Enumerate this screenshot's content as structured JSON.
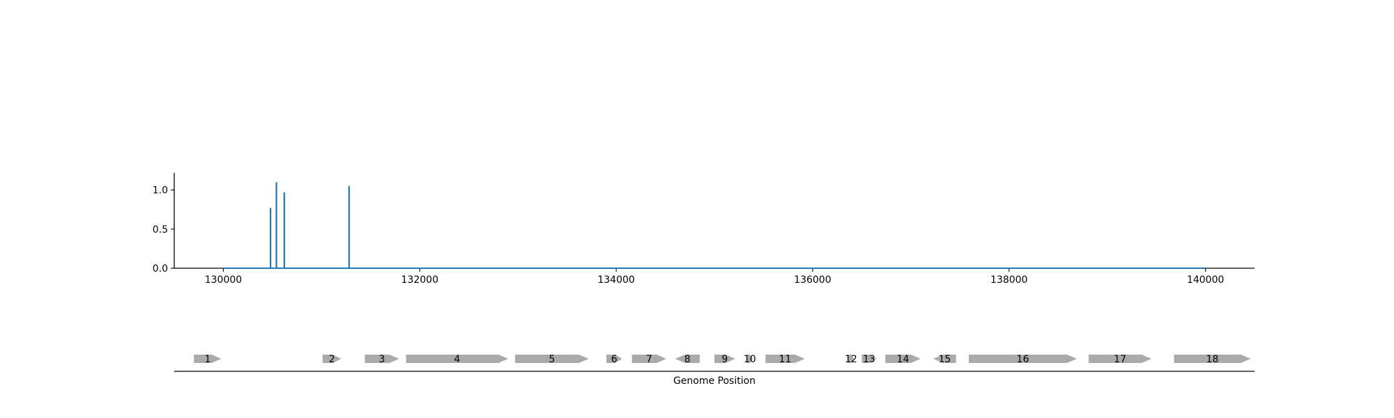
{
  "chart_data": [
    {
      "type": "line",
      "title": "",
      "xlabel": "",
      "ylabel": "",
      "xlim": [
        129500,
        140500
      ],
      "ylim": [
        0,
        1.22
      ],
      "x_ticks": [
        130000,
        132000,
        134000,
        136000,
        138000,
        140000
      ],
      "x_tick_labels": [
        "130000",
        "132000",
        "134000",
        "136000",
        "138000",
        "140000"
      ],
      "y_ticks": [
        0.0,
        0.5,
        1.0
      ],
      "y_tick_labels": [
        "0.0",
        "0.5",
        "1.0"
      ],
      "baseline": [
        130000,
        140000
      ],
      "spikes": [
        {
          "x": 130480,
          "y": 0.77
        },
        {
          "x": 130540,
          "y": 1.1
        },
        {
          "x": 130620,
          "y": 0.97
        },
        {
          "x": 131280,
          "y": 1.05
        }
      ],
      "color": "#1f77b4",
      "grid": false,
      "legend": "none"
    },
    {
      "type": "gene-map",
      "xlabel": "Genome Position",
      "xlim": [
        129500,
        140500
      ],
      "color": "#aaaaaa",
      "genes": [
        {
          "label": "1",
          "start": 129700,
          "end": 129980,
          "strand": 1
        },
        {
          "label": "2",
          "start": 131010,
          "end": 131200,
          "strand": 1
        },
        {
          "label": "3",
          "start": 131440,
          "end": 131790,
          "strand": 1
        },
        {
          "label": "4",
          "start": 131860,
          "end": 132900,
          "strand": 1
        },
        {
          "label": "5",
          "start": 132970,
          "end": 133720,
          "strand": 1
        },
        {
          "label": "6",
          "start": 133900,
          "end": 134060,
          "strand": 1
        },
        {
          "label": "7",
          "start": 134160,
          "end": 134510,
          "strand": 1
        },
        {
          "label": "8",
          "start": 134600,
          "end": 134850,
          "strand": -1
        },
        {
          "label": "9",
          "start": 135000,
          "end": 135210,
          "strand": 1
        },
        {
          "label": "10",
          "start": 135330,
          "end": 135390,
          "strand": 1
        },
        {
          "label": "11",
          "start": 135520,
          "end": 135920,
          "strand": 1
        },
        {
          "label": "12",
          "start": 136360,
          "end": 136420,
          "strand": 1
        },
        {
          "label": "13",
          "start": 136500,
          "end": 136650,
          "strand": 1
        },
        {
          "label": "14",
          "start": 136740,
          "end": 137100,
          "strand": 1
        },
        {
          "label": "15",
          "start": 137230,
          "end": 137460,
          "strand": -1
        },
        {
          "label": "16",
          "start": 137590,
          "end": 138690,
          "strand": 1
        },
        {
          "label": "17",
          "start": 138810,
          "end": 139450,
          "strand": 1
        },
        {
          "label": "18",
          "start": 139680,
          "end": 140460,
          "strand": 1
        }
      ]
    }
  ]
}
